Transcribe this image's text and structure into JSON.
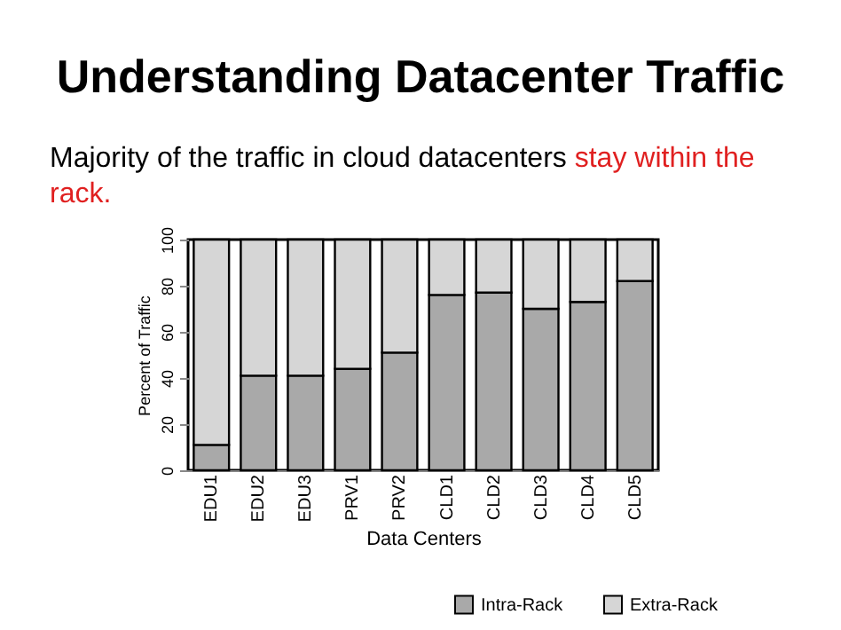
{
  "chart_data": {
    "type": "bar",
    "title": "Understanding Datacenter Traffic",
    "subtitle": "Majority of the traffic in cloud datacenters",
    "annotations": [
      "stay within the rack."
    ],
    "xlabel": "Data Centers",
    "ylabel": "Percent of Traffic",
    "categories": [
      "EDU1",
      "EDU2",
      "EDU3",
      "PRV1",
      "PRV2",
      "CLD1",
      "CLD2",
      "CLD3",
      "CLD4",
      "CLD5"
    ],
    "stacked": true,
    "ylim": [
      0,
      100
    ],
    "yticks": [
      0,
      20,
      40,
      60,
      80,
      100
    ],
    "legend": "bottom right",
    "series": [
      {
        "name": "Intra-Rack",
        "color": "#a9a9a9",
        "values": [
          11,
          41,
          41,
          44,
          51,
          76,
          77,
          70,
          73,
          82
        ]
      },
      {
        "name": "Extra-Rack",
        "color": "#d6d6d6",
        "values": [
          89,
          59,
          59,
          56,
          49,
          24,
          23,
          30,
          27,
          18
        ]
      }
    ]
  }
}
